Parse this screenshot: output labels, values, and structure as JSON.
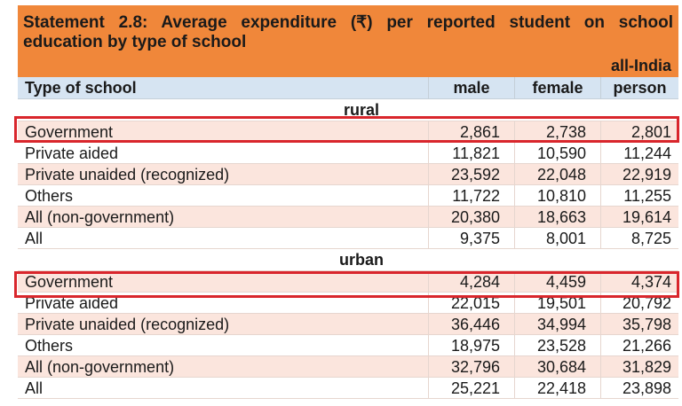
{
  "title": "Statement 2.8: Average expenditure (₹) per reported student on school education by type of school",
  "region": "all-India",
  "columns": [
    "Type of school",
    "male",
    "female",
    "person"
  ],
  "sections": [
    {
      "name": "rural",
      "rows": [
        {
          "type": "Government",
          "male": "2,861",
          "female": "2,738",
          "person": "2,801"
        },
        {
          "type": "Private aided",
          "male": "11,821",
          "female": "10,590",
          "person": "11,244"
        },
        {
          "type": "Private unaided (recognized)",
          "male": "23,592",
          "female": "22,048",
          "person": "22,919"
        },
        {
          "type": "Others",
          "male": "11,722",
          "female": "10,810",
          "person": "11,255"
        },
        {
          "type": "All (non-government)",
          "male": "20,380",
          "female": "18,663",
          "person": "19,614"
        },
        {
          "type": "All",
          "male": "9,375",
          "female": "8,001",
          "person": "8,725"
        }
      ]
    },
    {
      "name": "urban",
      "rows": [
        {
          "type": "Government",
          "male": "4,284",
          "female": "4,459",
          "person": "4,374"
        },
        {
          "type": "Private aided",
          "male": "22,015",
          "female": "19,501",
          "person": "20,792"
        },
        {
          "type": "Private unaided (recognized)",
          "male": "36,446",
          "female": "34,994",
          "person": "35,798"
        },
        {
          "type": "Others",
          "male": "18,975",
          "female": "23,528",
          "person": "21,266"
        },
        {
          "type": "All (non-government)",
          "male": "32,796",
          "female": "30,684",
          "person": "31,829"
        },
        {
          "type": "All",
          "male": "25,221",
          "female": "22,418",
          "person": "23,898"
        }
      ]
    }
  ],
  "highlight_color": "#d9262c",
  "title_bg": "#f0873a",
  "header_bg": "#d6e4f2",
  "row_pink": "#fbe5dd"
}
